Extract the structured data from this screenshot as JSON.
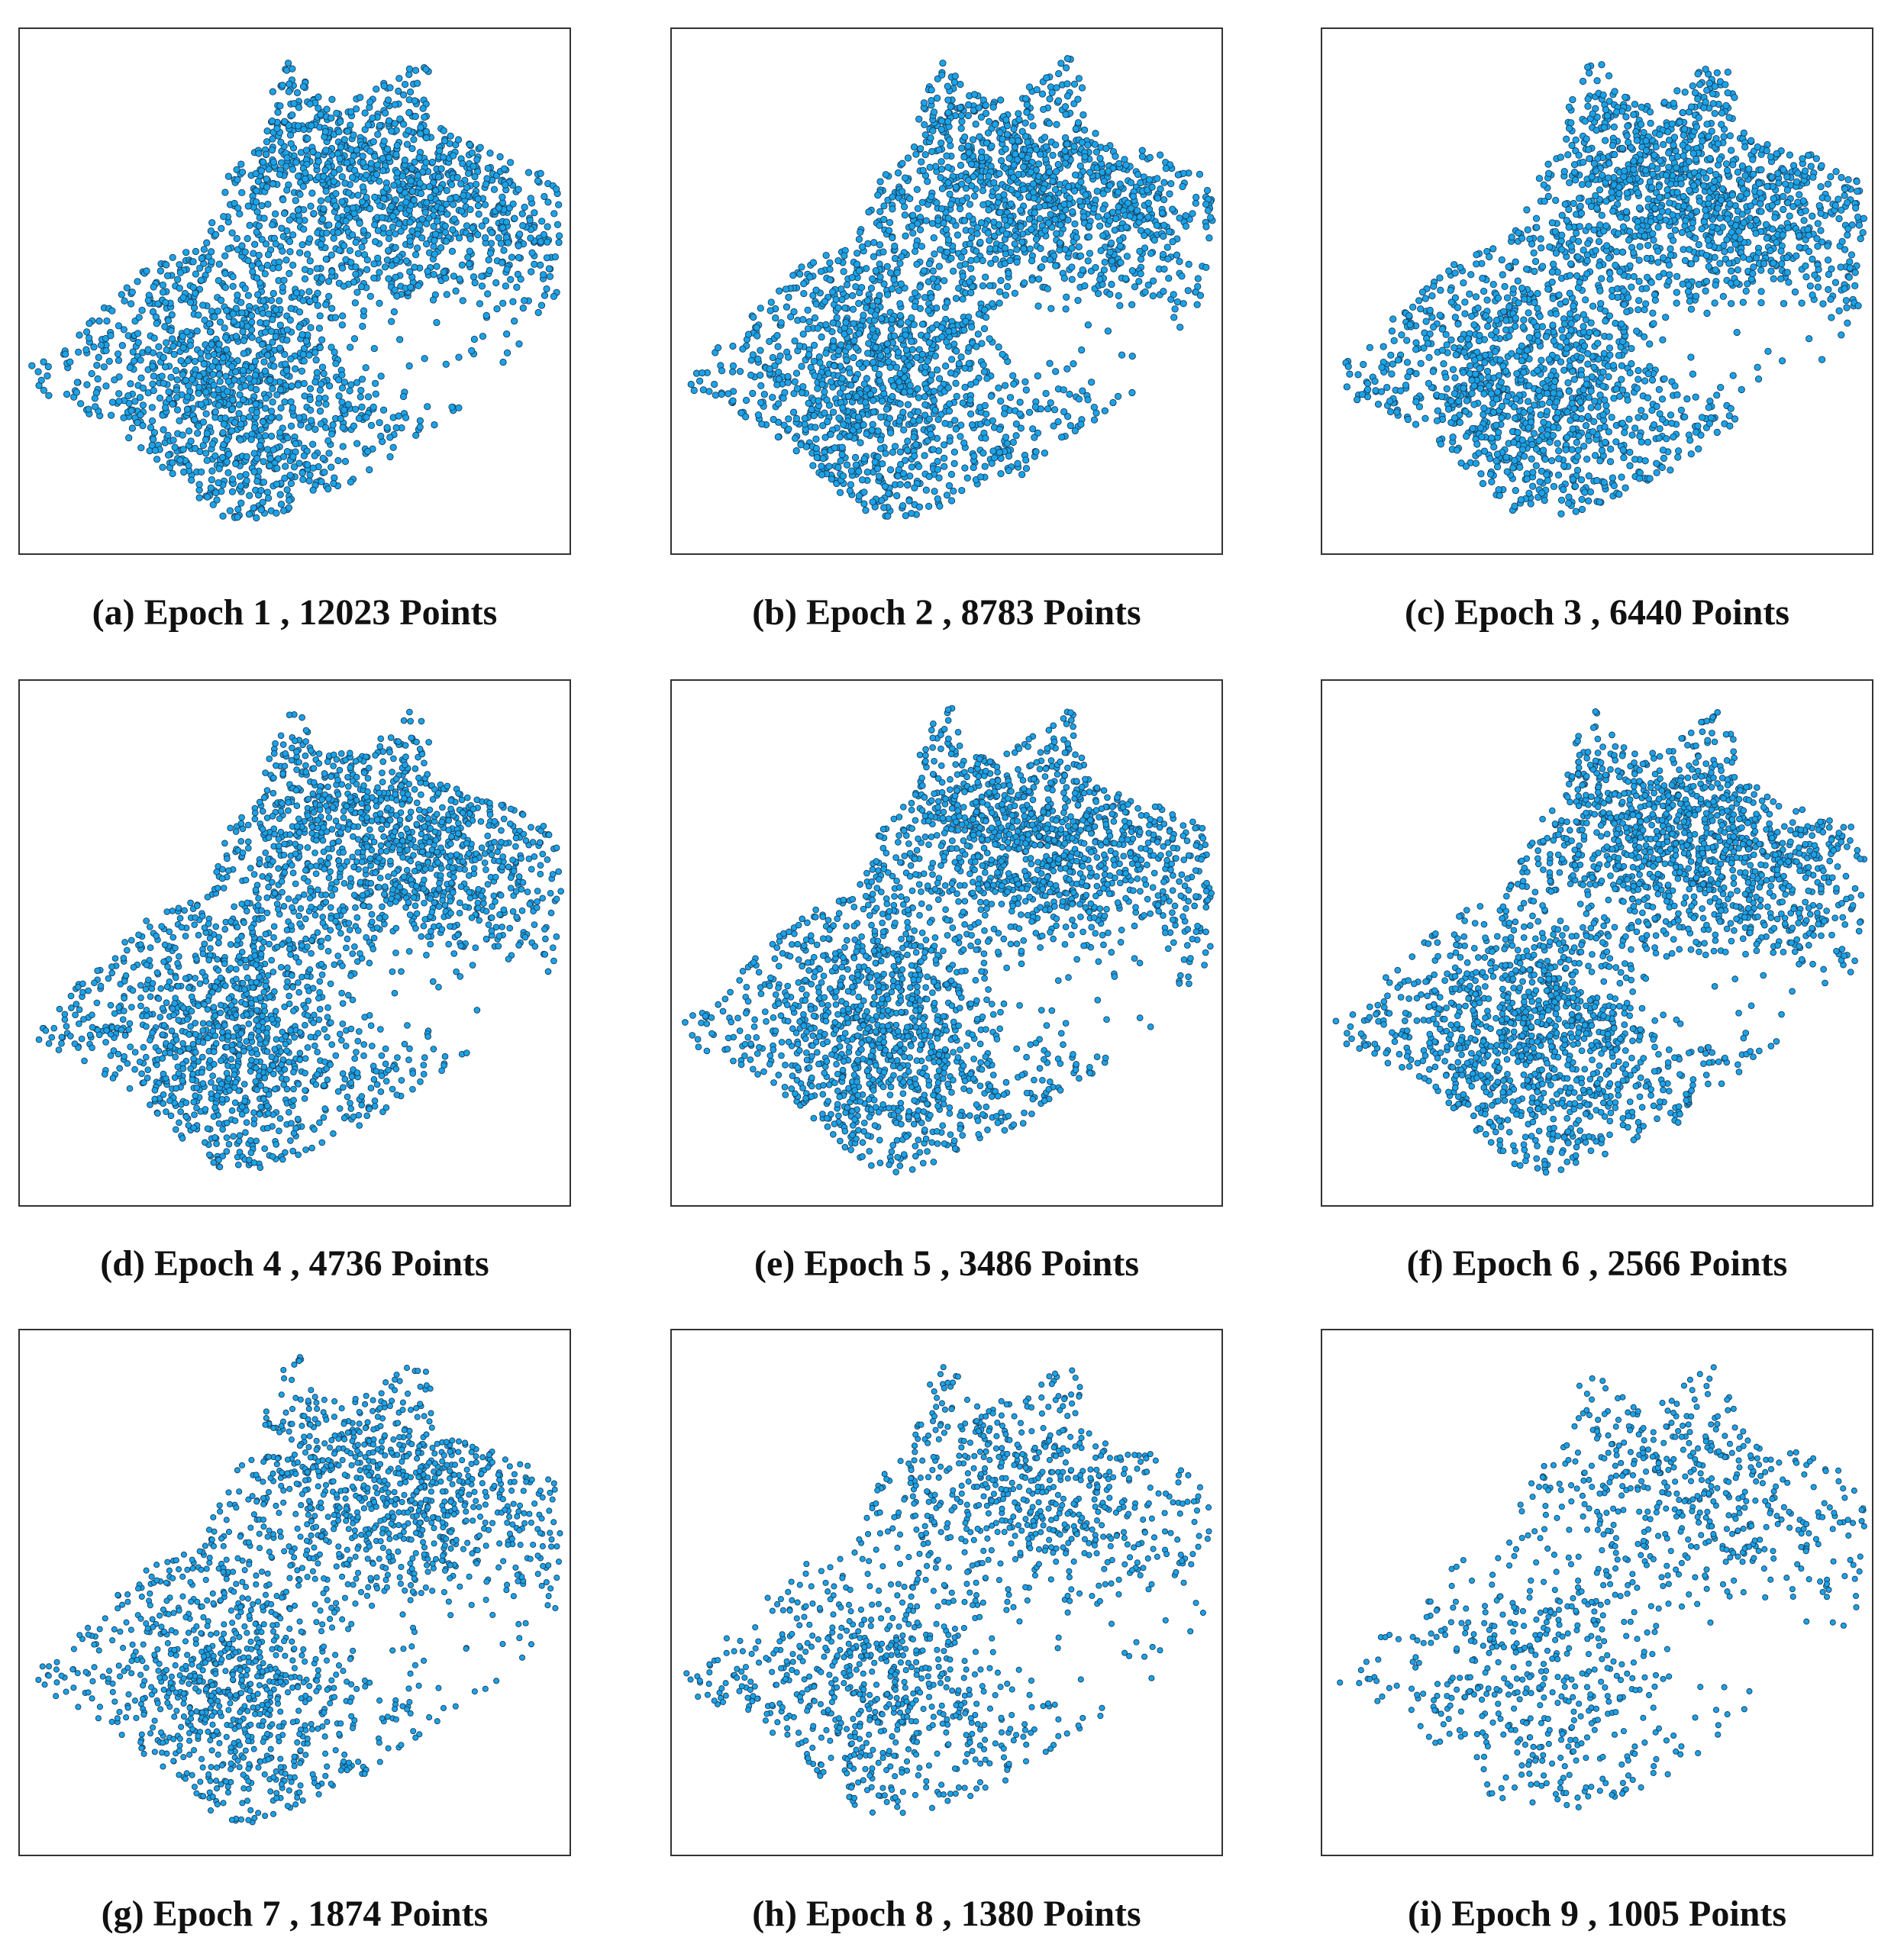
{
  "figure": {
    "point_fill": "#1aa3e8",
    "point_stroke": "#1c3a55",
    "frame_color": "#333333",
    "background": "#ffffff"
  },
  "chart_data": [
    {
      "type": "scatter",
      "label": "(a)",
      "epoch": 1,
      "points": 12023,
      "caption": "(a) Epoch 1 , 12023 Points",
      "axes_visible": false,
      "ticks": false,
      "grid": false
    },
    {
      "type": "scatter",
      "label": "(b)",
      "epoch": 2,
      "points": 8783,
      "caption": "(b) Epoch 2 , 8783 Points",
      "axes_visible": false,
      "ticks": false,
      "grid": false
    },
    {
      "type": "scatter",
      "label": "(c)",
      "epoch": 3,
      "points": 6440,
      "caption": "(c) Epoch 3 , 6440 Points",
      "axes_visible": false,
      "ticks": false,
      "grid": false
    },
    {
      "type": "scatter",
      "label": "(d)",
      "epoch": 4,
      "points": 4736,
      "caption": "(d) Epoch 4 , 4736 Points",
      "axes_visible": false,
      "ticks": false,
      "grid": false
    },
    {
      "type": "scatter",
      "label": "(e)",
      "epoch": 5,
      "points": 3486,
      "caption": "(e) Epoch 5 , 3486 Points",
      "axes_visible": false,
      "ticks": false,
      "grid": false
    },
    {
      "type": "scatter",
      "label": "(f)",
      "epoch": 6,
      "points": 2566,
      "caption": "(f) Epoch 6 , 2566 Points",
      "axes_visible": false,
      "ticks": false,
      "grid": false
    },
    {
      "type": "scatter",
      "label": "(g)",
      "epoch": 7,
      "points": 1874,
      "caption": "(g) Epoch 7 , 1874 Points",
      "axes_visible": false,
      "ticks": false,
      "grid": false
    },
    {
      "type": "scatter",
      "label": "(h)",
      "epoch": 8,
      "points": 1380,
      "caption": "(h) Epoch 8 , 1380 Points",
      "axes_visible": false,
      "ticks": false,
      "grid": false
    },
    {
      "type": "scatter",
      "label": "(i)",
      "epoch": 9,
      "points": 1005,
      "caption": "(i) Epoch 9 , 1005 Points",
      "axes_visible": false,
      "ticks": false,
      "grid": false
    }
  ]
}
